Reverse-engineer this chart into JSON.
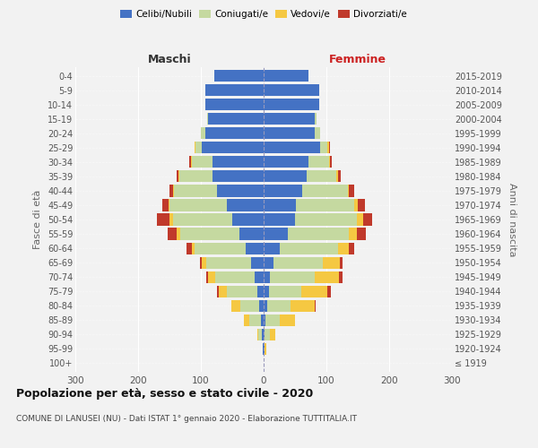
{
  "age_groups": [
    "100+",
    "95-99",
    "90-94",
    "85-89",
    "80-84",
    "75-79",
    "70-74",
    "65-69",
    "60-64",
    "55-59",
    "50-54",
    "45-49",
    "40-44",
    "35-39",
    "30-34",
    "25-29",
    "20-24",
    "15-19",
    "10-14",
    "5-9",
    "0-4"
  ],
  "birth_years": [
    "≤ 1919",
    "1920-1924",
    "1925-1929",
    "1930-1934",
    "1935-1939",
    "1940-1944",
    "1945-1949",
    "1950-1954",
    "1955-1959",
    "1960-1964",
    "1965-1969",
    "1970-1974",
    "1975-1979",
    "1980-1984",
    "1985-1989",
    "1990-1994",
    "1995-1999",
    "2000-2004",
    "2005-2009",
    "2010-2014",
    "2015-2019"
  ],
  "maschi": {
    "celibi": [
      0,
      1,
      3,
      5,
      7,
      10,
      15,
      20,
      28,
      38,
      50,
      58,
      75,
      82,
      82,
      98,
      93,
      88,
      93,
      93,
      78
    ],
    "coniugati": [
      0,
      1,
      5,
      18,
      30,
      48,
      62,
      72,
      82,
      95,
      95,
      92,
      68,
      52,
      32,
      10,
      7,
      2,
      0,
      0,
      0
    ],
    "vedovi": [
      0,
      0,
      2,
      8,
      15,
      14,
      12,
      6,
      5,
      5,
      5,
      2,
      2,
      2,
      2,
      2,
      0,
      0,
      0,
      0,
      0
    ],
    "divorziati": [
      0,
      0,
      0,
      0,
      0,
      2,
      2,
      3,
      8,
      15,
      20,
      10,
      5,
      3,
      2,
      0,
      0,
      0,
      0,
      0,
      0
    ]
  },
  "femmine": {
    "nubili": [
      0,
      1,
      2,
      3,
      5,
      8,
      10,
      16,
      26,
      38,
      50,
      52,
      62,
      68,
      72,
      90,
      82,
      82,
      88,
      88,
      72
    ],
    "coniugate": [
      0,
      1,
      8,
      22,
      38,
      52,
      72,
      78,
      92,
      98,
      98,
      92,
      72,
      48,
      32,
      12,
      8,
      2,
      0,
      0,
      0
    ],
    "vedove": [
      0,
      2,
      8,
      25,
      38,
      42,
      38,
      28,
      18,
      12,
      10,
      6,
      2,
      2,
      2,
      2,
      0,
      0,
      0,
      0,
      0
    ],
    "divorziate": [
      0,
      0,
      0,
      0,
      2,
      5,
      5,
      3,
      8,
      15,
      15,
      12,
      8,
      5,
      2,
      2,
      0,
      0,
      0,
      0,
      0
    ]
  },
  "colors": {
    "celibi": "#4472c4",
    "coniugati": "#c5d9a0",
    "vedovi": "#f5c842",
    "divorziati": "#c0392b"
  },
  "title": "Popolazione per età, sesso e stato civile - 2020",
  "subtitle": "COMUNE DI LANUSEI (NU) - Dati ISTAT 1° gennaio 2020 - Elaborazione TUTTITALIA.IT",
  "xlabel_maschi": "Maschi",
  "xlabel_femmine": "Femmine",
  "ylabel_left": "Fasce di età",
  "ylabel_right": "Anni di nascita",
  "xlim": 300,
  "background_color": "#f2f2f2",
  "legend_labels": [
    "Celibi/Nubili",
    "Coniugati/e",
    "Vedovi/e",
    "Divorziati/e"
  ]
}
